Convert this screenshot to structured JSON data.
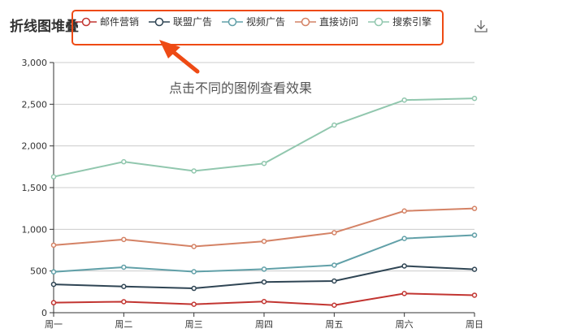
{
  "title": "折线图堆叠",
  "annotation": "点击不同的图例查看效果",
  "toolbox": {
    "download_icon": "download-icon"
  },
  "colors": {
    "highlight": "#ee4a14"
  },
  "chart_data": {
    "type": "line",
    "categories": [
      "周一",
      "周二",
      "周三",
      "周四",
      "周五",
      "周六",
      "周日"
    ],
    "ylim": [
      0,
      3000
    ],
    "yticks": [
      "0",
      "500",
      "1,000",
      "1,500",
      "2,000",
      "2,500",
      "3,000"
    ],
    "grid": true,
    "legend_position": "top",
    "series": [
      {
        "name": "邮件营销",
        "color": "#c23531",
        "values": [
          120,
          132,
          101,
          134,
          90,
          230,
          210
        ]
      },
      {
        "name": "联盟广告",
        "color": "#2f4554",
        "values": [
          340,
          314,
          292,
          368,
          380,
          560,
          520
        ]
      },
      {
        "name": "视频广告",
        "color": "#61a0a8",
        "values": [
          490,
          546,
          492,
          522,
          570,
          890,
          930
        ]
      },
      {
        "name": "直接访问",
        "color": "#d48265",
        "values": [
          810,
          878,
          794,
          856,
          960,
          1220,
          1250
        ]
      },
      {
        "name": "搜索引擎",
        "color": "#91c7ae",
        "values": [
          1630,
          1810,
          1700,
          1790,
          2250,
          2550,
          2570
        ]
      }
    ]
  }
}
